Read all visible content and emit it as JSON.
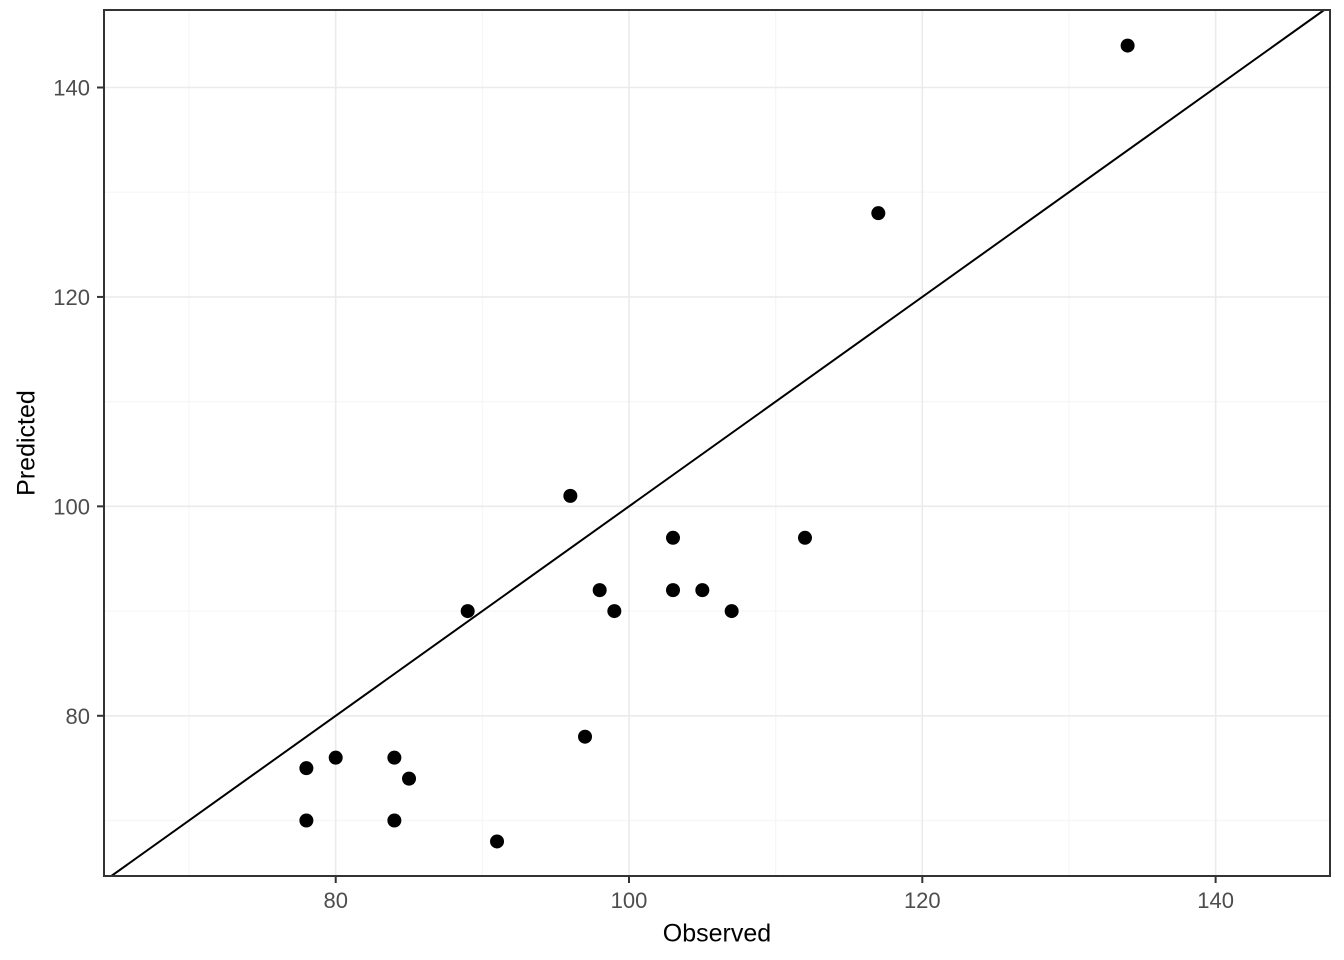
{
  "chart_data": {
    "type": "scatter",
    "title": "",
    "xlabel": "Observed",
    "ylabel": "Predicted",
    "xlim": [
      64.2,
      147.8
    ],
    "ylim": [
      64.7,
      147.4
    ],
    "x_ticks": [
      80,
      100,
      120,
      140
    ],
    "y_ticks": [
      80,
      100,
      120,
      140
    ],
    "x_minor_ticks": [
      70,
      90,
      110,
      130
    ],
    "y_minor_ticks": [
      70,
      90,
      110,
      130
    ],
    "grid": true,
    "legend": "none",
    "points": [
      {
        "observed": 78,
        "predicted": 75
      },
      {
        "observed": 78,
        "predicted": 70
      },
      {
        "observed": 80,
        "predicted": 76
      },
      {
        "observed": 84,
        "predicted": 76
      },
      {
        "observed": 84,
        "predicted": 70
      },
      {
        "observed": 85,
        "predicted": 74
      },
      {
        "observed": 89,
        "predicted": 90
      },
      {
        "observed": 91,
        "predicted": 68
      },
      {
        "observed": 96,
        "predicted": 101
      },
      {
        "observed": 97,
        "predicted": 78
      },
      {
        "observed": 98,
        "predicted": 92
      },
      {
        "observed": 99,
        "predicted": 90
      },
      {
        "observed": 103,
        "predicted": 97
      },
      {
        "observed": 103,
        "predicted": 92
      },
      {
        "observed": 105,
        "predicted": 92
      },
      {
        "observed": 107,
        "predicted": 90
      },
      {
        "observed": 112,
        "predicted": 97
      },
      {
        "observed": 117,
        "predicted": 128
      },
      {
        "observed": 134,
        "predicted": 144
      }
    ],
    "reference_line": {
      "type": "identity",
      "slope": 1,
      "intercept": 0
    },
    "colors": {
      "point": "#000000",
      "line": "#000000",
      "grid_major": "#EBEBEB",
      "grid_minor": "#F6F6F6",
      "panel_border": "#333333",
      "tick": "#333333",
      "tick_label": "#4D4D4D",
      "axis_title": "#000000",
      "background": "#FFFFFF"
    }
  }
}
